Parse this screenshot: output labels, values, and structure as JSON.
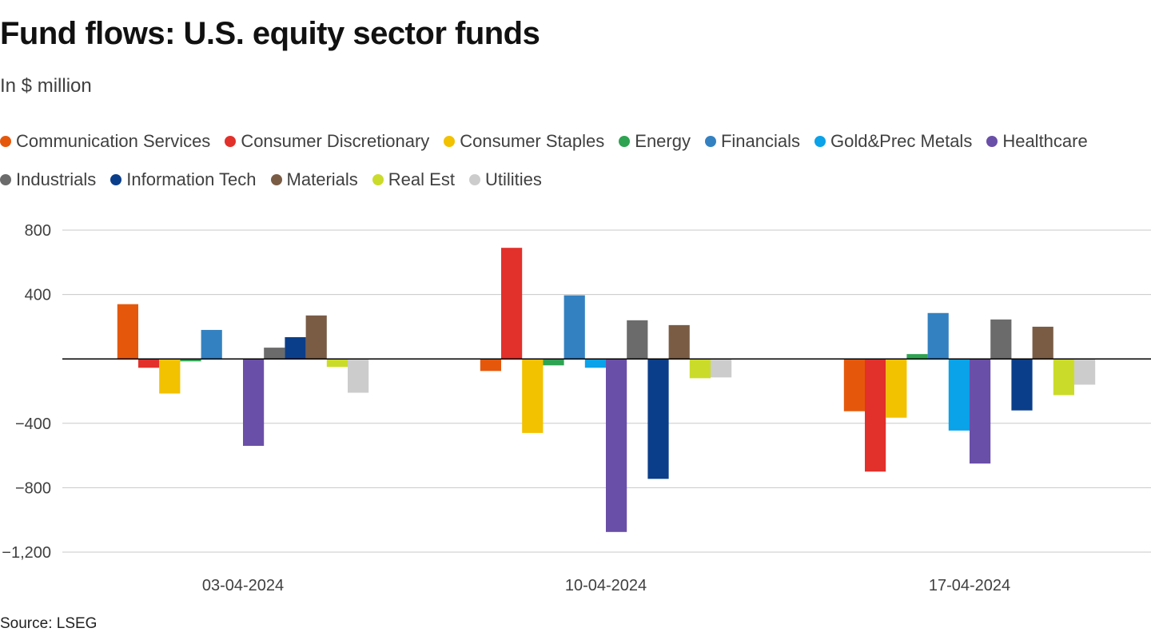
{
  "chart_data": {
    "type": "bar",
    "title": "Fund flows: U.S. equity sector funds",
    "subtitle": "In $ million",
    "source": "Source: LSEG",
    "categories": [
      "03-04-2024",
      "10-04-2024",
      "17-04-2024"
    ],
    "ylim": [
      -1200,
      800
    ],
    "yticks": [
      800,
      400,
      0,
      -400,
      -800,
      -1200
    ],
    "ytick_labels": [
      "800",
      "400",
      "",
      "−400",
      "−800",
      "−1,200"
    ],
    "grid": true,
    "legend_position": "top",
    "series": [
      {
        "name": "Communication Services",
        "color": "#e5580c",
        "values": [
          340,
          -75,
          -325
        ]
      },
      {
        "name": "Consumer Discretionary",
        "color": "#e2302b",
        "values": [
          -55,
          690,
          -700
        ]
      },
      {
        "name": "Consumer Staples",
        "color": "#f2c100",
        "values": [
          -215,
          -460,
          -365
        ]
      },
      {
        "name": "Energy",
        "color": "#2ea352",
        "values": [
          -15,
          -40,
          30
        ]
      },
      {
        "name": "Financials",
        "color": "#3381c1",
        "values": [
          180,
          395,
          285
        ]
      },
      {
        "name": "Gold&Prec Metals",
        "color": "#0aa2e8",
        "values": [
          0,
          -55,
          -445
        ]
      },
      {
        "name": "Healthcare",
        "color": "#6a4fa8",
        "values": [
          -540,
          -1075,
          -650
        ]
      },
      {
        "name": "Industrials",
        "color": "#6b6b6b",
        "values": [
          70,
          240,
          245
        ]
      },
      {
        "name": "Information Tech",
        "color": "#0b3e8a",
        "values": [
          135,
          -745,
          -320
        ]
      },
      {
        "name": "Materials",
        "color": "#7a5c45",
        "values": [
          270,
          210,
          200
        ]
      },
      {
        "name": "Real Est",
        "color": "#cbdb2a",
        "values": [
          -50,
          -120,
          -225
        ]
      },
      {
        "name": "Utilities",
        "color": "#cccccc",
        "values": [
          -210,
          -115,
          -160
        ]
      }
    ]
  }
}
